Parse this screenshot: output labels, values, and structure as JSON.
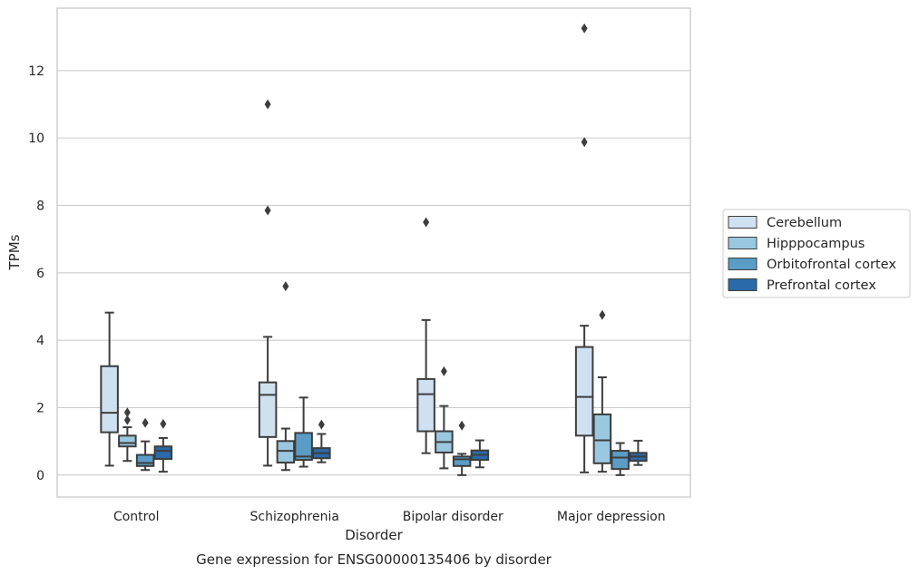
{
  "chart_data": {
    "type": "box",
    "xlabel": "Disorder",
    "ylabel": "TPMs",
    "caption": "Gene expression for ENSG00000135406 by disorder",
    "ylim": [
      -0.65,
      13.85
    ],
    "yticks": [
      0,
      2,
      4,
      6,
      8,
      10,
      12
    ],
    "grid": "horizontal",
    "legend_position": "right",
    "categories": [
      "Control",
      "Schizophrenia",
      "Bipolar disorder",
      "Major depression"
    ],
    "series": [
      {
        "name": "Cerebellum",
        "color": "#cfe0f1",
        "boxes": [
          {
            "whislo": 0.28,
            "q1": 1.27,
            "med": 1.85,
            "q3": 3.23,
            "whishi": 4.82,
            "fliers": []
          },
          {
            "whislo": 0.28,
            "q1": 1.13,
            "med": 2.38,
            "q3": 2.75,
            "whishi": 4.1,
            "fliers": [
              7.85,
              11.0
            ]
          },
          {
            "whislo": 0.65,
            "q1": 1.3,
            "med": 2.4,
            "q3": 2.85,
            "whishi": 4.6,
            "fliers": [
              7.5
            ]
          },
          {
            "whislo": 0.08,
            "q1": 1.17,
            "med": 2.32,
            "q3": 3.8,
            "whishi": 4.43,
            "fliers": [
              9.88,
              13.25
            ]
          }
        ]
      },
      {
        "name": "Hipppocampus",
        "color": "#9ac8e0",
        "boxes": [
          {
            "whislo": 0.42,
            "q1": 0.85,
            "med": 0.95,
            "q3": 1.17,
            "whishi": 1.42,
            "fliers": [
              1.63,
              1.86
            ]
          },
          {
            "whislo": 0.15,
            "q1": 0.37,
            "med": 0.72,
            "q3": 1.01,
            "whishi": 1.38,
            "fliers": [
              5.6
            ]
          },
          {
            "whislo": 0.2,
            "q1": 0.67,
            "med": 0.98,
            "q3": 1.3,
            "whishi": 2.05,
            "fliers": [
              3.08
            ]
          },
          {
            "whislo": 0.1,
            "q1": 0.35,
            "med": 1.03,
            "q3": 1.8,
            "whishi": 2.9,
            "fliers": [
              4.75
            ]
          }
        ]
      },
      {
        "name": "Orbitofrontal cortex",
        "color": "#5a9cc6",
        "boxes": [
          {
            "whislo": 0.15,
            "q1": 0.27,
            "med": 0.36,
            "q3": 0.6,
            "whishi": 1.0,
            "fliers": [
              1.55
            ]
          },
          {
            "whislo": 0.25,
            "q1": 0.45,
            "med": 0.55,
            "q3": 1.25,
            "whishi": 2.3,
            "fliers": []
          },
          {
            "whislo": 0.0,
            "q1": 0.27,
            "med": 0.47,
            "q3": 0.55,
            "whishi": 0.63,
            "fliers": [
              1.47
            ]
          },
          {
            "whislo": 0.0,
            "q1": 0.18,
            "med": 0.52,
            "q3": 0.72,
            "whishi": 0.95,
            "fliers": []
          }
        ]
      },
      {
        "name": "Prefrontal cortex",
        "color": "#2a6aa8",
        "boxes": [
          {
            "whislo": 0.1,
            "q1": 0.48,
            "med": 0.72,
            "q3": 0.85,
            "whishi": 1.1,
            "fliers": [
              1.52
            ]
          },
          {
            "whislo": 0.38,
            "q1": 0.5,
            "med": 0.65,
            "q3": 0.8,
            "whishi": 1.22,
            "fliers": [
              1.5
            ]
          },
          {
            "whislo": 0.23,
            "q1": 0.45,
            "med": 0.6,
            "q3": 0.73,
            "whishi": 1.03,
            "fliers": []
          },
          {
            "whislo": 0.3,
            "q1": 0.42,
            "med": 0.55,
            "q3": 0.66,
            "whishi": 1.02,
            "fliers": []
          }
        ]
      }
    ]
  }
}
